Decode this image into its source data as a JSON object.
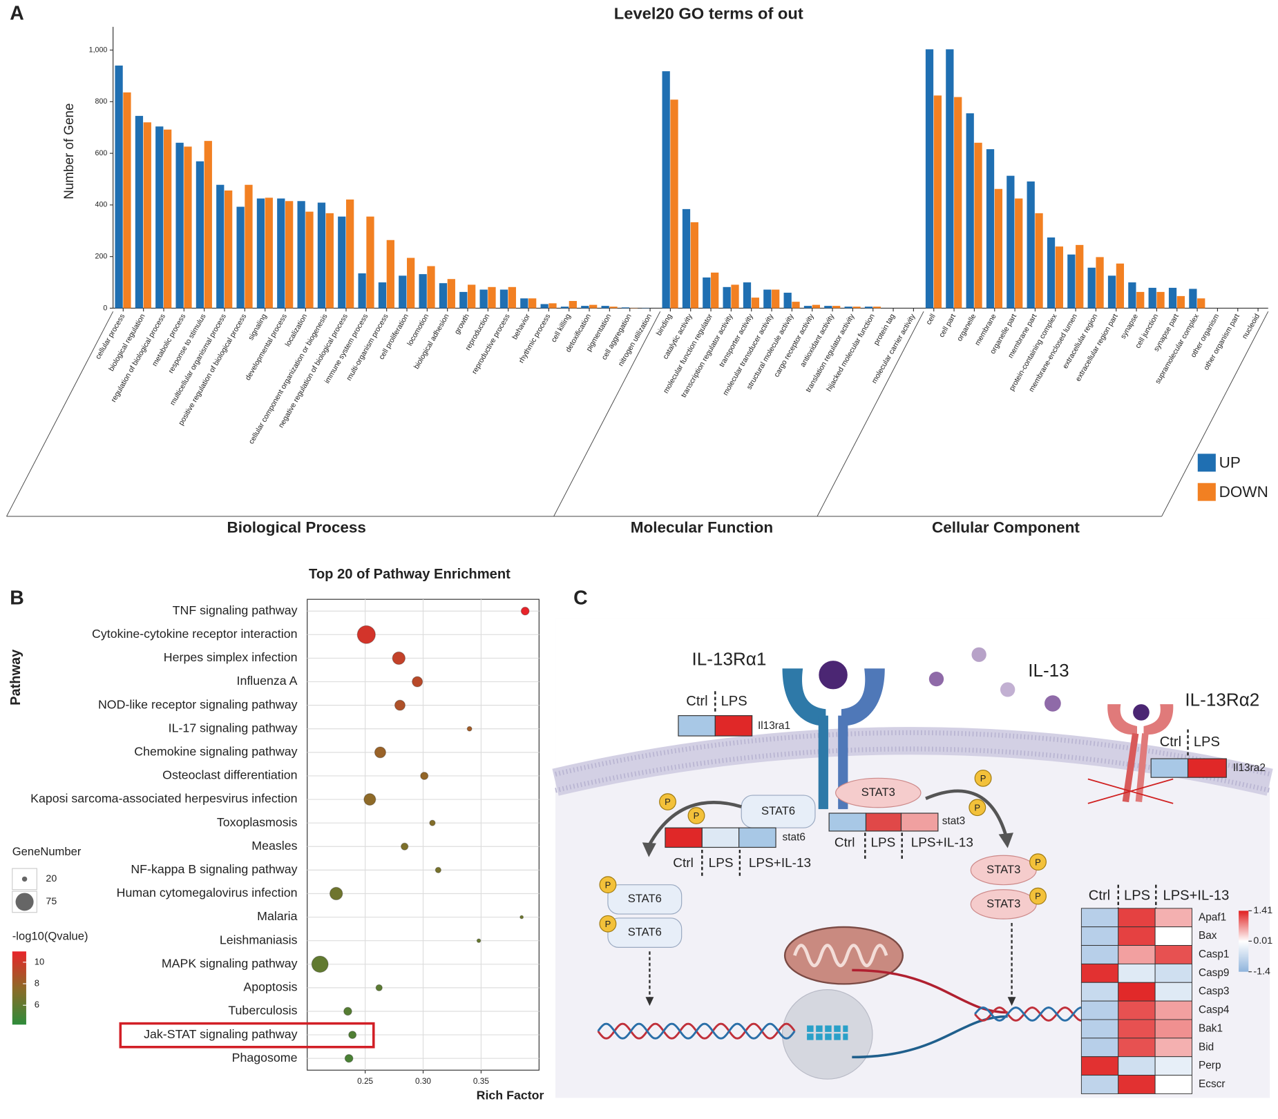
{
  "panel_labels": [
    "A",
    "B",
    "C"
  ],
  "chart_data": [
    {
      "type": "bar",
      "title": "Level20 GO terms of out",
      "ylabel": "Number of Gene",
      "groups": [
        {
          "label": "Biological Process",
          "categories": [
            "cellular process",
            "biological regulation",
            "regulation of biological process",
            "metabolic process",
            "response to stimulus",
            "multicellular organismal process",
            "positive regulation of biological process",
            "signaling",
            "developmental process",
            "localization",
            "cellular component organization or biogenesis",
            "negative regulation of biological process",
            "immune system process",
            "multi-organism process",
            "cell proliferation",
            "locomotion",
            "biological adhesion",
            "growth",
            "reproduction",
            "reproductive process",
            "behavior",
            "rhythmic process",
            "cell killing",
            "detoxification",
            "pigmentation",
            "cell aggregation",
            "nitrogen utilization"
          ]
        },
        {
          "label": "Molecular Function",
          "categories": [
            "binding",
            "catalytic activity",
            "molecular function regulator",
            "transcription regulator activity",
            "transporter activity",
            "molecular transducer activity",
            "structural molecule activity",
            "cargo receptor activity",
            "antioxidant activity",
            "translation regulator activity",
            "hijacked molecular function",
            "protein tag",
            "molecular carrier activity"
          ]
        },
        {
          "label": "Cellular Component",
          "categories": [
            "cell",
            "cell part",
            "organelle",
            "membrane",
            "organelle part",
            "membrane part",
            "protein-containing complex",
            "membrane-enclosed lumen",
            "extracellular region",
            "extracellular region part",
            "synapse",
            "cell junction",
            "synapse part",
            "supramolecular complex",
            "other organism",
            "other organism part",
            "nucleoid"
          ]
        }
      ],
      "series": [
        {
          "name": "UP",
          "color": "#1f6fb2",
          "values": [
            940,
            745,
            704,
            641,
            569,
            478,
            393,
            425,
            425,
            415,
            409,
            355,
            135,
            100,
            126,
            132,
            97,
            63,
            72,
            72,
            38,
            16,
            6,
            9,
            9,
            3,
            1,
            918,
            384,
            119,
            82,
            100,
            72,
            60,
            9,
            9,
            6,
            6,
            0,
            0,
            1003,
            1003,
            755,
            616,
            513,
            491,
            274,
            208,
            157,
            126,
            100,
            79,
            79,
            75,
            0,
            0,
            0
          ]
        },
        {
          "name": "DOWN",
          "color": "#f28022",
          "values": [
            836,
            720,
            692,
            626,
            648,
            456,
            478,
            428,
            415,
            374,
            368,
            421,
            355,
            264,
            195,
            163,
            113,
            91,
            82,
            82,
            38,
            19,
            28,
            13,
            6,
            1,
            0,
            808,
            333,
            138,
            91,
            41,
            72,
            25,
            13,
            9,
            6,
            6,
            0,
            0,
            824,
            818,
            641,
            462,
            425,
            368,
            239,
            245,
            198,
            173,
            63,
            63,
            47,
            38,
            0,
            0,
            0
          ]
        }
      ],
      "ylim": [
        0,
        1090
      ],
      "yticks": [
        0,
        200,
        400,
        600,
        800,
        {
          "value": 1000,
          "label": "1,000"
        }
      ],
      "legend": "right"
    },
    {
      "type": "scatter",
      "title": "Top 20 of Pathway Enrichment",
      "xlabel": "Rich Factor",
      "ylabel": "Pathway",
      "categories": [
        "TNF signaling pathway",
        "Cytokine-cytokine receptor interaction",
        "Herpes simplex infection",
        "Influenza A",
        "NOD-like receptor signaling pathway",
        "IL-17 signaling pathway",
        "Chemokine signaling pathway",
        "Osteoclast differentiation",
        "Kaposi sarcoma-associated herpesvirus infection",
        "Toxoplasmosis",
        "Measles",
        "NF-kappa B signaling pathway",
        "Human cytomegalovirus infection",
        "Malaria",
        "Leishmaniasis",
        "MAPK signaling pathway",
        "Apoptosis",
        "Tuberculosis",
        "Jak-STAT signaling pathway",
        "Phagosome"
      ],
      "x": [
        0.388,
        0.251,
        0.279,
        0.295,
        0.28,
        0.34,
        0.263,
        0.301,
        0.254,
        0.308,
        0.284,
        0.313,
        0.225,
        0.385,
        0.348,
        0.211,
        0.262,
        0.235,
        0.239,
        0.236
      ],
      "size": {
        "title": "GeneNumber",
        "values": [
          32,
          75,
          52,
          42,
          42,
          18,
          45,
          30,
          48,
          22,
          28,
          22,
          52,
          12,
          14,
          68,
          25,
          32,
          30,
          32
        ],
        "legend": [
          20,
          75
        ]
      },
      "color": {
        "title": "-log10(Qvalue)",
        "values": [
          11,
          10.2,
          9.6,
          9.2,
          8.8,
          8.3,
          8,
          7.8,
          7.6,
          7.2,
          7,
          6.8,
          6.5,
          6.4,
          6.2,
          6,
          5.8,
          5.6,
          5.4,
          5.2
        ],
        "ticks": [
          10,
          8,
          6
        ],
        "lim": [
          4.2,
          11
        ],
        "colors": [
          "#2e8b3a",
          "#8e6a28",
          "#e8242a"
        ]
      },
      "xlim": [
        0.2,
        0.4
      ],
      "xticks": [
        0.25,
        {
          "value": 0.3,
          "label": "0.30"
        },
        0.35
      ],
      "grid": true,
      "highlight_index": 18
    }
  ],
  "diagram": {
    "receptor1": "IL-13Rα1",
    "ligand": "IL-13",
    "receptor2": "IL-13Rα2",
    "conditions": [
      "Ctrl",
      "LPS",
      "LPS+IL-13"
    ],
    "genes": {
      "il13ra1": "Il13ra1",
      "il13ra2": "Il13ra2",
      "stat6": "stat6",
      "stat3": "stat3"
    },
    "proteins": {
      "stat6": "STAT6",
      "stat3": "STAT3"
    },
    "phospho": "P",
    "heatmap": {
      "rows": [
        "Apaf1",
        "Bax",
        "Casp1",
        "Casp9",
        "Casp3",
        "Casp4",
        "Bak1",
        "Bid",
        "Perp",
        "Ecscr"
      ],
      "values": [
        [
          -0.9,
          1.2,
          0.5
        ],
        [
          -0.9,
          1.2,
          0.0
        ],
        [
          -0.9,
          0.6,
          1.1
        ],
        [
          1.3,
          -0.4,
          -0.6
        ],
        [
          -0.7,
          1.35,
          -0.4
        ],
        [
          -0.9,
          1.1,
          0.6
        ],
        [
          -0.9,
          1.1,
          0.7
        ],
        [
          -0.9,
          1.1,
          0.5
        ],
        [
          1.3,
          -0.6,
          -0.3
        ],
        [
          -0.8,
          1.3,
          0.0
        ]
      ],
      "lim": [
        -1.4,
        1.41
      ],
      "ticks": [
        1.41,
        0.01,
        -1.4
      ],
      "colors": [
        "#8fb4dc",
        "#ffffff",
        "#e02020"
      ]
    }
  }
}
